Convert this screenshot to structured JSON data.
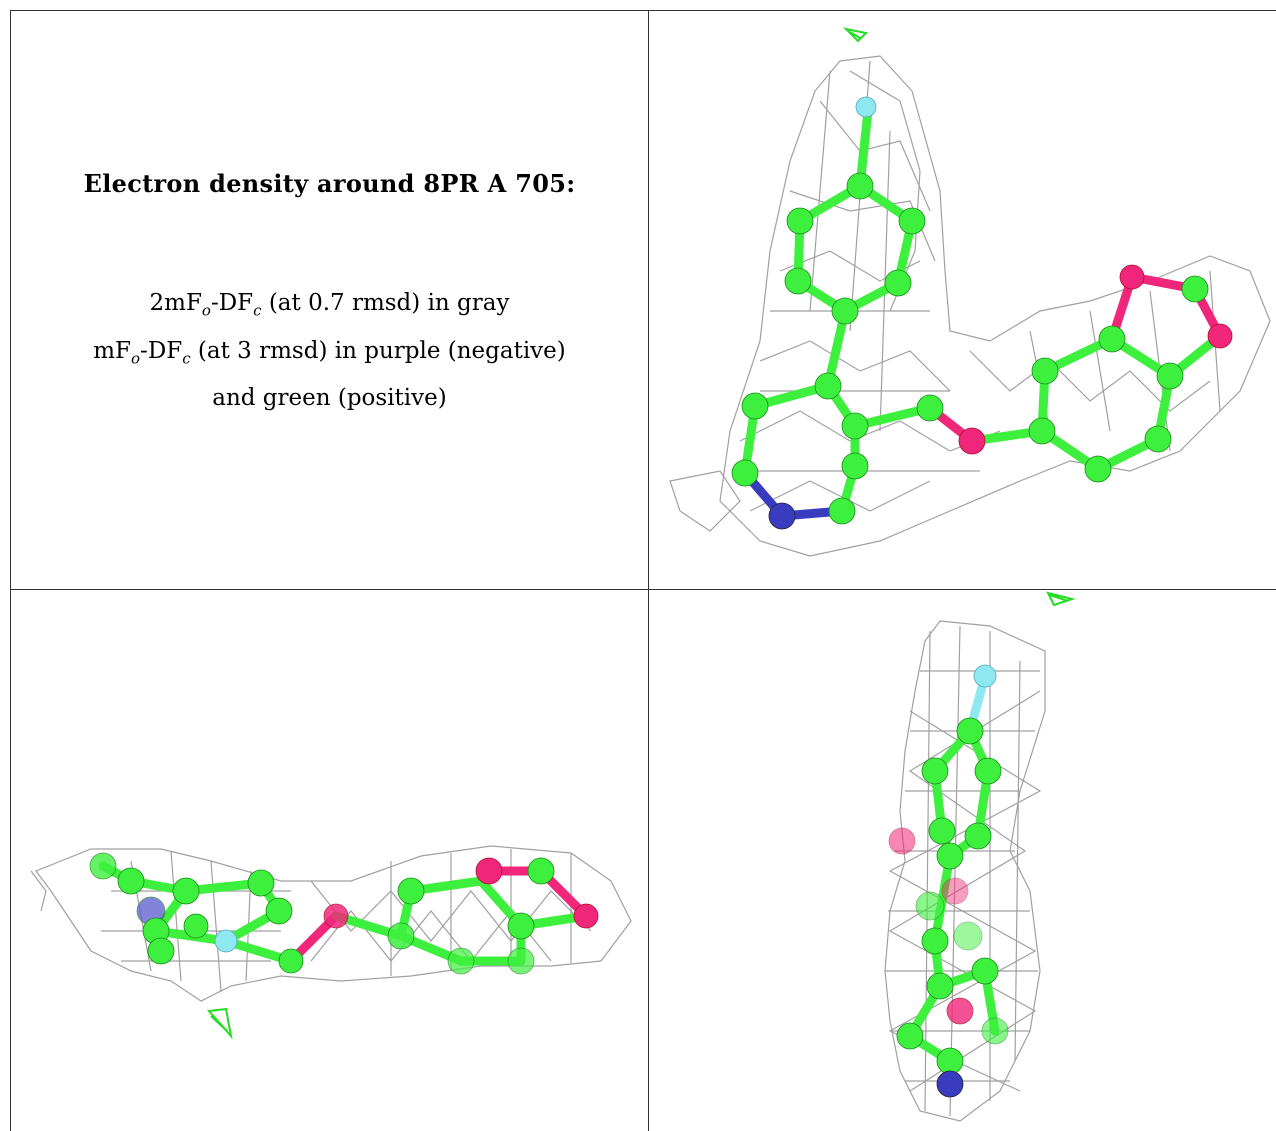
{
  "title": "Electron density around 8PR A 705:",
  "legend": {
    "line1_pre": "2mF",
    "line1_sub1": "o",
    "line1_mid": "-DF",
    "line1_sub2": "c",
    "line1_post": " (at 0.7 rmsd) in gray",
    "line2_pre": "mF",
    "line2_sub1": "o",
    "line2_mid": "-DF",
    "line2_sub2": "c",
    "line2_post": " (at 3 rmsd) in purple (negative)",
    "line3": "and green (positive)"
  },
  "colors": {
    "carbon": "#3ef03e",
    "oxygen": "#f0267a",
    "nitrogen": "#3a3cbf",
    "fluorine": "#8ee8f0",
    "mesh_gray": "#9a9a9a",
    "mesh_green": "#22dd22",
    "border": "#333333"
  }
}
